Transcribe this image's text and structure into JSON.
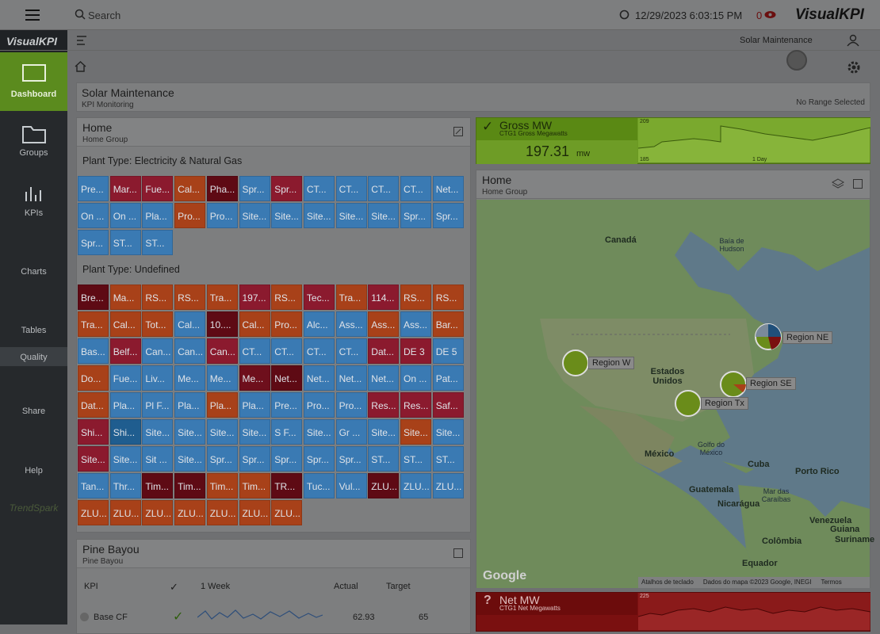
{
  "topbar": {
    "search": "Search",
    "datetime": "12/29/2023 6:03:15 PM",
    "alerts": "0",
    "logo": "VisualKPI"
  },
  "sidebar": {
    "logo": "VisualKPI",
    "items": [
      "Dashboard",
      "Groups",
      "KPIs",
      "Charts",
      "Tables",
      "Quality",
      "Share",
      "Help"
    ],
    "footer_logo": "TrendSpark"
  },
  "subbar": {
    "dashboard": "Solar Maintenance"
  },
  "header_panel": {
    "title": "Solar Maintenance",
    "subtitle": "KPI Monitoring",
    "range": "No Range Selected"
  },
  "home": {
    "title": "Home",
    "subtitle": "Home Group",
    "groups": [
      {
        "title": "Plant Type: Electricity & Natural Gas",
        "tiles": [
          {
            "text": "Pre...",
            "color": "#3a7ab3"
          },
          {
            "text": "Mar...",
            "color": "#8b1a2e"
          },
          {
            "text": "Fue...",
            "color": "#8b1a2e"
          },
          {
            "text": "Cal...",
            "color": "#a84119"
          },
          {
            "text": "Pha...",
            "color": "#5e0a14"
          },
          {
            "text": "Spr...",
            "color": "#3a7ab3"
          },
          {
            "text": "Spr...",
            "color": "#8b1a2e"
          },
          {
            "text": "CT...",
            "color": "#3a7ab3"
          },
          {
            "text": "CT...",
            "color": "#3a7ab3"
          },
          {
            "text": "CT...",
            "color": "#3a7ab3"
          },
          {
            "text": "CT...",
            "color": "#3a7ab3"
          },
          {
            "text": "Net...",
            "color": "#3a7ab3"
          },
          {
            "text": "On ...",
            "color": "#3a7ab3"
          },
          {
            "text": "On ...",
            "color": "#3a7ab3"
          },
          {
            "text": "Pla...",
            "color": "#3a7ab3"
          },
          {
            "text": "Pro...",
            "color": "#a84119"
          },
          {
            "text": "Pro...",
            "color": "#3a7ab3"
          },
          {
            "text": "Site...",
            "color": "#3a7ab3"
          },
          {
            "text": "Site...",
            "color": "#3a7ab3"
          },
          {
            "text": "Site...",
            "color": "#3a7ab3"
          },
          {
            "text": "Site...",
            "color": "#3a7ab3"
          },
          {
            "text": "Site...",
            "color": "#3a7ab3"
          },
          {
            "text": "Spr...",
            "color": "#3a7ab3"
          },
          {
            "text": "Spr...",
            "color": "#3a7ab3"
          },
          {
            "text": "Spr...",
            "color": "#3a7ab3"
          },
          {
            "text": "ST...",
            "color": "#3a7ab3"
          },
          {
            "text": "ST...",
            "color": "#3a7ab3"
          }
        ]
      },
      {
        "title": "Plant Type: Undefined",
        "tiles": [
          {
            "text": "Bre...",
            "color": "#5e0a14"
          },
          {
            "text": "Ma...",
            "color": "#a84119"
          },
          {
            "text": "RS...",
            "color": "#a84119"
          },
          {
            "text": "RS...",
            "color": "#a84119"
          },
          {
            "text": "Tra...",
            "color": "#a84119"
          },
          {
            "text": "197...",
            "color": "#8b1a2e"
          },
          {
            "text": "RS...",
            "color": "#a84119"
          },
          {
            "text": "Tec...",
            "color": "#8b1a2e"
          },
          {
            "text": "Tra...",
            "color": "#a84119"
          },
          {
            "text": "114...",
            "color": "#8b1a2e"
          },
          {
            "text": "RS...",
            "color": "#a84119"
          },
          {
            "text": "RS...",
            "color": "#a84119"
          },
          {
            "text": "Tra...",
            "color": "#a84119"
          },
          {
            "text": "Cal...",
            "color": "#a84119"
          },
          {
            "text": "Tot...",
            "color": "#a84119"
          },
          {
            "text": "Cal...",
            "color": "#3a7ab3"
          },
          {
            "text": "10....",
            "color": "#5e0a14"
          },
          {
            "text": "Cal...",
            "color": "#a84119"
          },
          {
            "text": "Pro...",
            "color": "#a84119"
          },
          {
            "text": "Alc...",
            "color": "#3a7ab3"
          },
          {
            "text": "Ass...",
            "color": "#3a7ab3"
          },
          {
            "text": "Ass...",
            "color": "#a84119"
          },
          {
            "text": "Ass...",
            "color": "#3a7ab3"
          },
          {
            "text": "Bar...",
            "color": "#a84119"
          },
          {
            "text": "Bas...",
            "color": "#3a7ab3"
          },
          {
            "text": "Belf...",
            "color": "#8b1a2e"
          },
          {
            "text": "Can...",
            "color": "#3a7ab3"
          },
          {
            "text": "Can...",
            "color": "#3a7ab3"
          },
          {
            "text": "Can...",
            "color": "#8b1a2e"
          },
          {
            "text": "CT...",
            "color": "#3a7ab3"
          },
          {
            "text": "CT...",
            "color": "#3a7ab3"
          },
          {
            "text": "CT...",
            "color": "#3a7ab3"
          },
          {
            "text": "CT...",
            "color": "#3a7ab3"
          },
          {
            "text": "Dat...",
            "color": "#8b1a2e"
          },
          {
            "text": "DE 3",
            "color": "#8b1a2e"
          },
          {
            "text": "DE 5",
            "color": "#3a7ab3"
          },
          {
            "text": "Do...",
            "color": "#a84119"
          },
          {
            "text": "Fue...",
            "color": "#3a7ab3"
          },
          {
            "text": "Liv...",
            "color": "#3a7ab3"
          },
          {
            "text": "Me...",
            "color": "#3a7ab3"
          },
          {
            "text": "Me...",
            "color": "#3a7ab3"
          },
          {
            "text": "Me...",
            "color": "#6e0f1c"
          },
          {
            "text": "Net...",
            "color": "#5e0a14"
          },
          {
            "text": "Net...",
            "color": "#3a7ab3"
          },
          {
            "text": "Net...",
            "color": "#3a7ab3"
          },
          {
            "text": "Net...",
            "color": "#3a7ab3"
          },
          {
            "text": "On ...",
            "color": "#3a7ab3"
          },
          {
            "text": "Pat...",
            "color": "#3a7ab3"
          },
          {
            "text": "Dat...",
            "color": "#a84119"
          },
          {
            "text": "Pla...",
            "color": "#3a7ab3"
          },
          {
            "text": "Pl F...",
            "color": "#3a7ab3"
          },
          {
            "text": "Pla...",
            "color": "#3a7ab3"
          },
          {
            "text": "Pla...",
            "color": "#a84119"
          },
          {
            "text": "Pla...",
            "color": "#3a7ab3"
          },
          {
            "text": "Pre...",
            "color": "#3a7ab3"
          },
          {
            "text": "Pro...",
            "color": "#3a7ab3"
          },
          {
            "text": "Pro...",
            "color": "#3a7ab3"
          },
          {
            "text": "Res...",
            "color": "#8b1a2e"
          },
          {
            "text": "Res...",
            "color": "#8b1a2e"
          },
          {
            "text": "Saf...",
            "color": "#8b1a2e"
          },
          {
            "text": "Shi...",
            "color": "#8b1a2e"
          },
          {
            "text": "Shi...",
            "color": "#1f5d8f"
          },
          {
            "text": "Site...",
            "color": "#3a7ab3"
          },
          {
            "text": "Site...",
            "color": "#3a7ab3"
          },
          {
            "text": "Site...",
            "color": "#3a7ab3"
          },
          {
            "text": "Site...",
            "color": "#3a7ab3"
          },
          {
            "text": "S F...",
            "color": "#3a7ab3"
          },
          {
            "text": "Site...",
            "color": "#3a7ab3"
          },
          {
            "text": "Gr ...",
            "color": "#3a7ab3"
          },
          {
            "text": "Site...",
            "color": "#3a7ab3"
          },
          {
            "text": "Site...",
            "color": "#a84119"
          },
          {
            "text": "Site...",
            "color": "#3a7ab3"
          },
          {
            "text": "Site...",
            "color": "#8b1a2e"
          },
          {
            "text": "Site...",
            "color": "#3a7ab3"
          },
          {
            "text": "Sit ...",
            "color": "#3a7ab3"
          },
          {
            "text": "Site...",
            "color": "#3a7ab3"
          },
          {
            "text": "Spr...",
            "color": "#3a7ab3"
          },
          {
            "text": "Spr...",
            "color": "#3a7ab3"
          },
          {
            "text": "Spr...",
            "color": "#3a7ab3"
          },
          {
            "text": "Spr...",
            "color": "#3a7ab3"
          },
          {
            "text": "Spr...",
            "color": "#3a7ab3"
          },
          {
            "text": "ST...",
            "color": "#3a7ab3"
          },
          {
            "text": "ST...",
            "color": "#3a7ab3"
          },
          {
            "text": "ST...",
            "color": "#3a7ab3"
          },
          {
            "text": "Tan...",
            "color": "#3a7ab3"
          },
          {
            "text": "Thr...",
            "color": "#3a7ab3"
          },
          {
            "text": "Tim...",
            "color": "#5e0a14"
          },
          {
            "text": "Tim...",
            "color": "#5e0a14"
          },
          {
            "text": "Tim...",
            "color": "#a84119"
          },
          {
            "text": "Tim...",
            "color": "#a84119"
          },
          {
            "text": "TR...",
            "color": "#5e0a14"
          },
          {
            "text": "Tuc...",
            "color": "#3a7ab3"
          },
          {
            "text": "Vul...",
            "color": "#3a7ab3"
          },
          {
            "text": "ZLU...",
            "color": "#5e0a14"
          },
          {
            "text": "ZLU...",
            "color": "#3a7ab3"
          },
          {
            "text": "ZLU...",
            "color": "#3a7ab3"
          },
          {
            "text": "ZLU...",
            "color": "#a84119"
          },
          {
            "text": "ZLU...",
            "color": "#a84119"
          },
          {
            "text": "ZLU...",
            "color": "#a84119"
          },
          {
            "text": "ZLU...",
            "color": "#a84119"
          },
          {
            "text": "ZLU...",
            "color": "#a84119"
          },
          {
            "text": "ZLU...",
            "color": "#a84119"
          },
          {
            "text": "ZLU...",
            "color": "#a84119"
          }
        ]
      }
    ]
  },
  "pine_bayou": {
    "title": "Pine Bayou",
    "subtitle": "Pine Bayou",
    "columns": [
      "KPI",
      "1 Week",
      "Actual",
      "Target"
    ],
    "rows": [
      {
        "name": "Base CF",
        "actual": "62.93",
        "target": "65"
      }
    ]
  },
  "gross_mw": {
    "title": "Gross MW",
    "subtitle": "CTG1 Gross Megawatts",
    "value": "197.31",
    "unit": "mw",
    "chart_max": "209",
    "chart_min": "185",
    "chart_span": "1 Day"
  },
  "map_panel": {
    "title": "Home",
    "subtitle": "Home Group",
    "labels": [
      "Canadá",
      "Baía de Hudson",
      "Estados Unidos",
      "México",
      "Golfo do México",
      "Cuba",
      "Porto Rico",
      "Guatemala",
      "Nicarágua",
      "Mar das Caraíbas",
      "Venezuela",
      "Guiana",
      "Suriname",
      "Colômbia",
      "Equador"
    ],
    "regions": [
      "Region NE",
      "Region W",
      "Region SE",
      "Region Tx"
    ],
    "footer": [
      "Google",
      "Atalhos de teclado",
      "Dados do mapa ©2023 Google, INEGI",
      "Termos"
    ]
  },
  "net_mw": {
    "status": "?",
    "title": "Net MW",
    "subtitle": "CTG1 Net Megawatts",
    "chart_max": "225"
  }
}
